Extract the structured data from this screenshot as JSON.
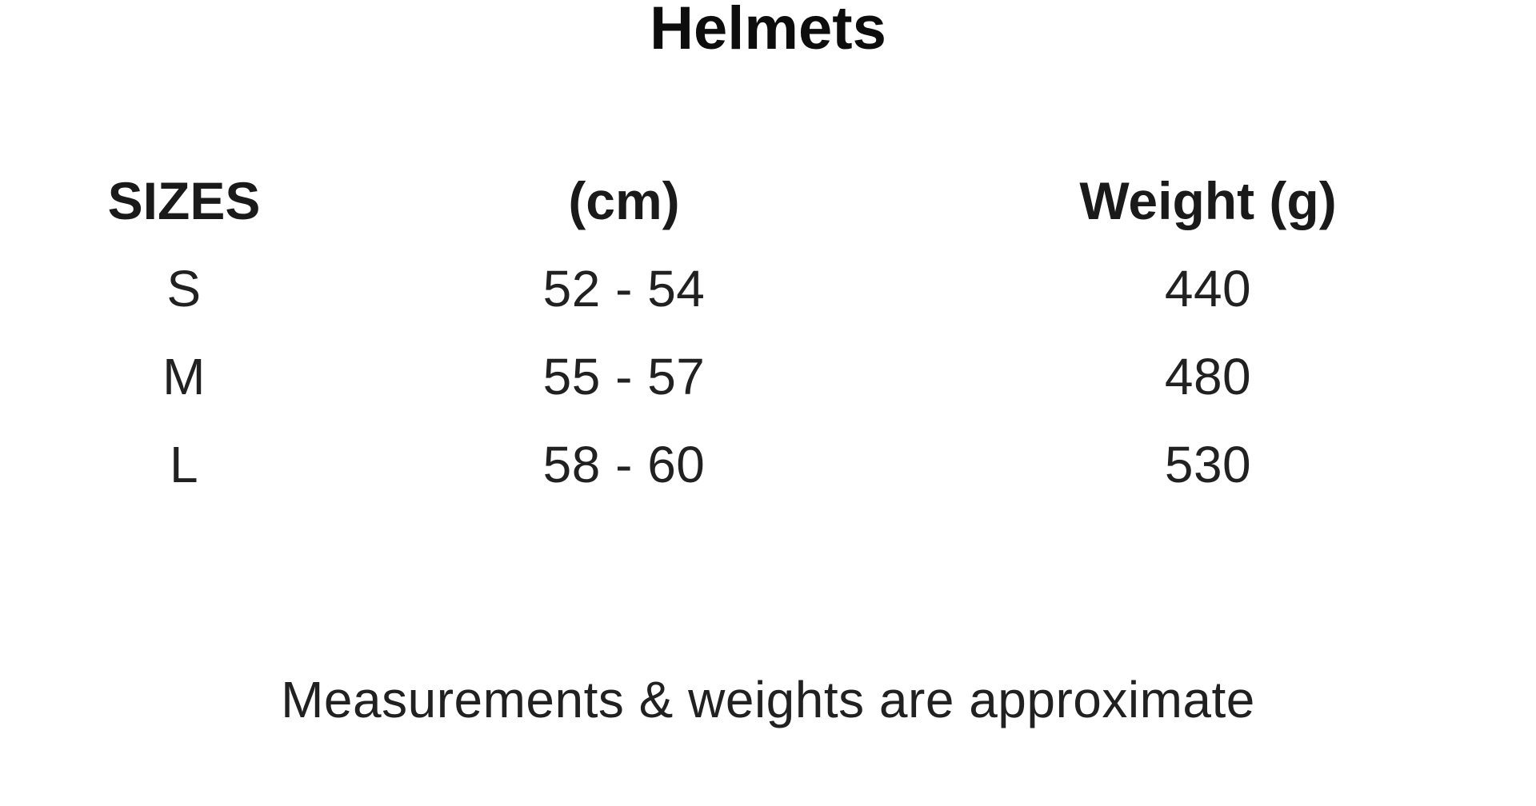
{
  "colors": {
    "background": "#ffffff",
    "title_text": "#0d0d0d",
    "body_text": "#212121"
  },
  "chart_data": {
    "type": "table",
    "title": "Helmets",
    "columns": [
      "SIZES",
      "(cm)",
      "Weight (g)"
    ],
    "rows": [
      [
        "S",
        "52 - 54",
        "440"
      ],
      [
        "M",
        "55 - 57",
        "480"
      ],
      [
        "L",
        "58 - 60",
        "530"
      ]
    ],
    "footnote": "Measurements & weights are approximate",
    "layout": {
      "column_alignment": "center",
      "grid": "none",
      "title_position": "top-center",
      "footnote_position": "bottom-center"
    }
  }
}
